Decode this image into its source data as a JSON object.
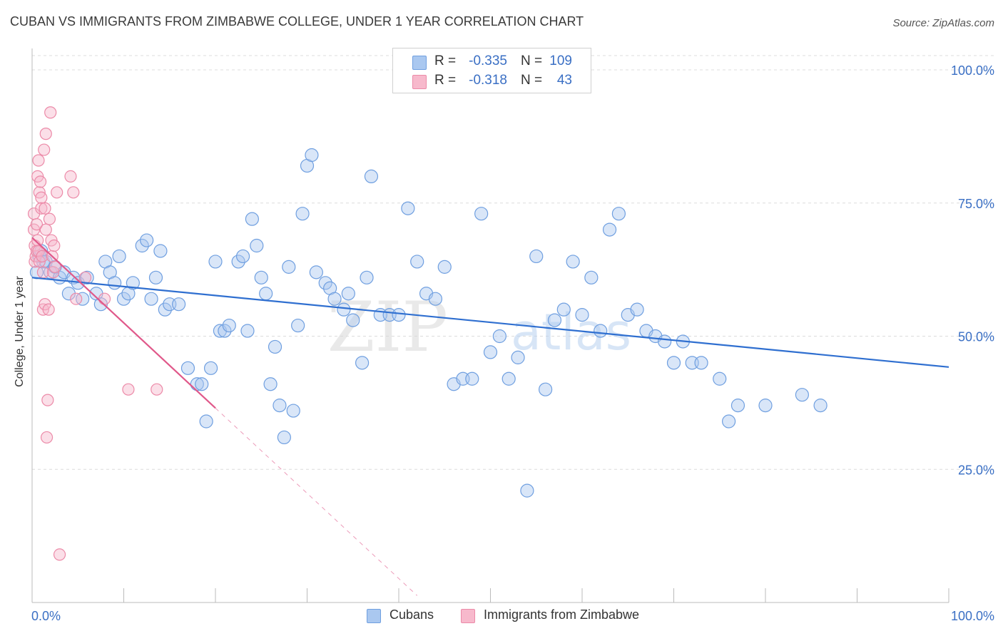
{
  "header": {
    "title": "CUBAN VS IMMIGRANTS FROM ZIMBABWE COLLEGE, UNDER 1 YEAR CORRELATION CHART",
    "source": "Source: ZipAtlas.com"
  },
  "legend": {
    "rows": [
      {
        "r_label": "R =",
        "r_value": "-0.335",
        "n_label": "N =",
        "n_value": "109",
        "color": "#aac8f0",
        "stroke": "#6f9fe0"
      },
      {
        "r_label": "R =",
        "r_value": "-0.318",
        "n_label": "N =",
        "n_value": "43",
        "color": "#f7b9cc",
        "stroke": "#ec8aa8"
      }
    ]
  },
  "watermark": {
    "zip": "ZIP",
    "atlas": "atlas"
  },
  "bottom_legend": [
    {
      "label": "Cubans",
      "color": "#aac8f0",
      "stroke": "#6f9fe0"
    },
    {
      "label": "Immigrants from Zimbabwe",
      "color": "#f7b9cc",
      "stroke": "#ec8aa8"
    }
  ],
  "chart_data": {
    "type": "scatter",
    "title": "CUBAN VS IMMIGRANTS FROM ZIMBABWE COLLEGE, UNDER 1 YEAR CORRELATION CHART",
    "xlabel": "",
    "ylabel": "College, Under 1 year",
    "xlim": [
      0,
      100
    ],
    "ylim": [
      0,
      105
    ],
    "x_tick_labels": [
      "0.0%",
      "100.0%"
    ],
    "y_ticks": [
      25,
      50,
      75,
      100
    ],
    "y_tick_labels": [
      "25.0%",
      "50.0%",
      "75.0%",
      "100.0%"
    ],
    "grid": true,
    "legend_position": "top-center",
    "series": [
      {
        "name": "Cubans",
        "color": "#6f9fe0",
        "fill": "#aac8f0",
        "trend": {
          "x": [
            0,
            100
          ],
          "y": [
            61.0,
            44.2
          ],
          "color": "#2f6fd0"
        },
        "x": [
          0.5,
          0.8,
          1.0,
          1.2,
          1.5,
          2.0,
          2.5,
          3.0,
          3.5,
          4.0,
          4.5,
          5.0,
          5.5,
          6.0,
          7.0,
          7.5,
          8.0,
          8.5,
          9.0,
          9.5,
          10.0,
          10.5,
          11.0,
          12.0,
          12.5,
          13.0,
          13.5,
          14.0,
          14.5,
          15.0,
          16.0,
          17.0,
          18.0,
          18.5,
          19.0,
          19.5,
          20.0,
          20.5,
          21.0,
          21.5,
          22.5,
          23.0,
          23.5,
          24.0,
          24.5,
          25.0,
          25.5,
          26.0,
          26.5,
          27.0,
          27.5,
          28.0,
          28.5,
          29.0,
          29.5,
          30.0,
          30.5,
          31.0,
          32.0,
          32.5,
          33.0,
          34.0,
          34.5,
          35.0,
          36.0,
          36.5,
          37.0,
          38.0,
          39.0,
          40.0,
          41.0,
          42.0,
          43.0,
          44.0,
          45.0,
          46.0,
          47.0,
          48.0,
          49.0,
          50.0,
          51.0,
          52.0,
          53.0,
          54.0,
          55.0,
          56.0,
          57.0,
          58.0,
          59.0,
          60.0,
          61.0,
          62.0,
          63.0,
          64.0,
          65.0,
          66.0,
          67.0,
          68.0,
          69.0,
          70.0,
          71.0,
          72.0,
          73.0,
          75.0,
          76.0,
          77.0,
          80.0,
          84.0,
          86.0
        ],
        "y": [
          62,
          65,
          66,
          64,
          64,
          62,
          63,
          61,
          62,
          58,
          61,
          60,
          57,
          61,
          58,
          56,
          64,
          62,
          60,
          65,
          57,
          58,
          60,
          67,
          68,
          57,
          61,
          66,
          55,
          56,
          56,
          44,
          41,
          41,
          34,
          44,
          64,
          51,
          51,
          52,
          64,
          65,
          51,
          72,
          67,
          61,
          58,
          41,
          48,
          37,
          31,
          63,
          36,
          52,
          73,
          82,
          84,
          62,
          60,
          59,
          57,
          55,
          58,
          53,
          45,
          61,
          80,
          54,
          54,
          54,
          74,
          64,
          58,
          57,
          63,
          41,
          42,
          42,
          73,
          47,
          50,
          42,
          46,
          21,
          65,
          40,
          53,
          55,
          64,
          54,
          61,
          51,
          70,
          73,
          54,
          55,
          51,
          50,
          49,
          45,
          49,
          45,
          45,
          42,
          34,
          37,
          37,
          39,
          37
        ]
      },
      {
        "name": "Immigrants from Zimbabwe",
        "color": "#ec8aa8",
        "fill": "#f7b9cc",
        "trend": {
          "x": [
            0,
            20
          ],
          "y": [
            68.5,
            36.5
          ],
          "color": "#e0588a",
          "dash_extension_to_x": 42
        },
        "x": [
          0.2,
          0.2,
          0.3,
          0.3,
          0.4,
          0.5,
          0.5,
          0.6,
          0.6,
          0.7,
          0.7,
          0.8,
          0.8,
          0.9,
          1.0,
          1.0,
          1.1,
          1.2,
          1.2,
          1.3,
          1.4,
          1.4,
          1.5,
          1.5,
          1.6,
          1.7,
          1.8,
          1.9,
          2.0,
          2.1,
          2.2,
          2.3,
          2.4,
          2.5,
          2.7,
          3.0,
          4.2,
          4.5,
          4.8,
          5.8,
          7.9,
          10.5,
          13.6
        ],
        "y": [
          73,
          70,
          67,
          64,
          65,
          71,
          66,
          80,
          68,
          83,
          66,
          77,
          64,
          79,
          76,
          74,
          65,
          55,
          62,
          85,
          56,
          74,
          88,
          70,
          31,
          38,
          55,
          72,
          92,
          68,
          65,
          62,
          67,
          63,
          77,
          9,
          80,
          77,
          57,
          61,
          57,
          40,
          40
        ]
      }
    ]
  }
}
